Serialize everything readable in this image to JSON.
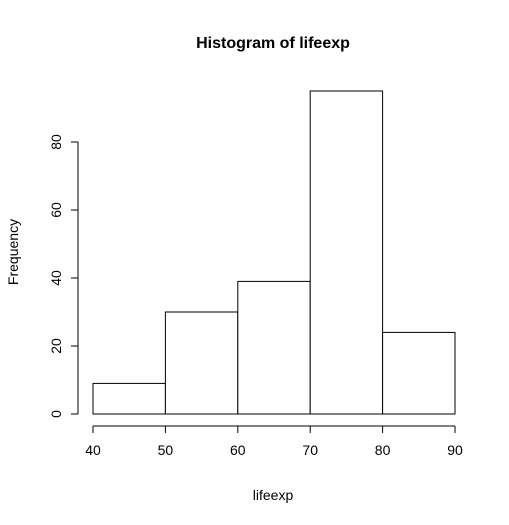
{
  "chart_data": {
    "type": "bar",
    "title": "Histogram of lifeexp",
    "xlabel": "lifeexp",
    "ylabel": "Frequency",
    "bins": [
      {
        "start": 40,
        "end": 50,
        "count": 9
      },
      {
        "start": 50,
        "end": 60,
        "count": 30
      },
      {
        "start": 60,
        "end": 70,
        "count": 39
      },
      {
        "start": 70,
        "end": 80,
        "count": 95
      },
      {
        "start": 80,
        "end": 90,
        "count": 24
      }
    ],
    "xticks": [
      40,
      50,
      60,
      70,
      80,
      90
    ],
    "yticks": [
      0,
      20,
      40,
      60,
      80
    ],
    "xlim": [
      40,
      90
    ],
    "ylim": [
      0,
      95
    ],
    "grid": false,
    "colors": {
      "bar_fill": "#ffffff",
      "bar_stroke": "#000000"
    }
  }
}
